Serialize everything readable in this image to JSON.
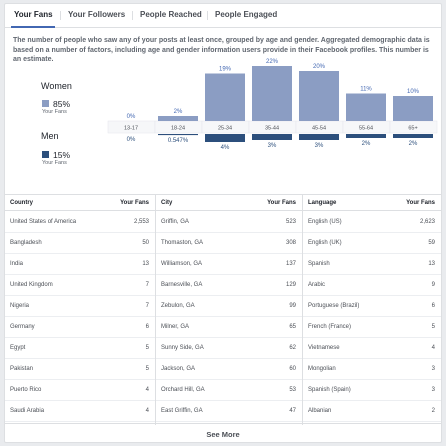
{
  "tabs": [
    {
      "label": "Your Fans",
      "active": true
    },
    {
      "label": "Your Followers",
      "active": false
    },
    {
      "label": "People Reached",
      "active": false
    },
    {
      "label": "People Engaged",
      "active": false
    }
  ],
  "description": "The number of people who saw any of your posts at least once, grouped by age and gender. Aggregated demographic data is based on a number of factors, including age and gender information users provide in their Facebook profiles. This number is an estimate.",
  "women": {
    "label": "Women",
    "pct": "85%",
    "sub": "Your Fans",
    "color": "#8b9dc3"
  },
  "men": {
    "label": "Men",
    "pct": "15%",
    "sub": "Your Fans",
    "color": "#2c4f7c"
  },
  "chart_data": {
    "type": "bar",
    "categories": [
      "13-17",
      "18-24",
      "25-34",
      "35-44",
      "45-54",
      "55-64",
      "65+"
    ],
    "series": [
      {
        "name": "Women",
        "values": [
          0,
          2,
          19,
          22,
          20,
          11,
          10
        ],
        "labels": [
          "0%",
          "2%",
          "19%",
          "22%",
          "20%",
          "11%",
          "10%"
        ]
      },
      {
        "name": "Men",
        "values": [
          0,
          0.547,
          4,
          3,
          3,
          2,
          2
        ],
        "labels": [
          "0%",
          "0.547%",
          "4%",
          "3%",
          "3%",
          "2%",
          "2%"
        ]
      }
    ]
  },
  "tables": {
    "country": {
      "header": "Country",
      "value_header": "Your Fans",
      "rows": [
        [
          "United States of America",
          "2,553"
        ],
        [
          "Bangladesh",
          "50"
        ],
        [
          "India",
          "13"
        ],
        [
          "United Kingdom",
          "7"
        ],
        [
          "Nigeria",
          "7"
        ],
        [
          "Germany",
          "6"
        ],
        [
          "Egypt",
          "5"
        ],
        [
          "Pakistan",
          "5"
        ],
        [
          "Puerto Rico",
          "4"
        ],
        [
          "Saudi Arabia",
          "4"
        ]
      ]
    },
    "city": {
      "header": "City",
      "value_header": "Your Fans",
      "rows": [
        [
          "Griffin, GA",
          "523"
        ],
        [
          "Thomaston, GA",
          "308"
        ],
        [
          "Williamson, GA",
          "137"
        ],
        [
          "Barnesville, GA",
          "129"
        ],
        [
          "Zebulon, GA",
          "99"
        ],
        [
          "Milner, GA",
          "65"
        ],
        [
          "Sunny Side, GA",
          "62"
        ],
        [
          "Jackson, GA",
          "60"
        ],
        [
          "Orchard Hill, GA",
          "53"
        ],
        [
          "East Griffin, GA",
          "47"
        ]
      ]
    },
    "language": {
      "header": "Language",
      "value_header": "Your Fans",
      "rows": [
        [
          "English (US)",
          "2,623"
        ],
        [
          "English (UK)",
          "59"
        ],
        [
          "Spanish",
          "13"
        ],
        [
          "Arabic",
          "9"
        ],
        [
          "Portuguese (Brazil)",
          "6"
        ],
        [
          "French (France)",
          "5"
        ],
        [
          "Vietnamese",
          "4"
        ],
        [
          "Mongolian",
          "3"
        ],
        [
          "Spanish (Spain)",
          "3"
        ],
        [
          "Albanian",
          "2"
        ]
      ]
    }
  },
  "see_more": "See More"
}
